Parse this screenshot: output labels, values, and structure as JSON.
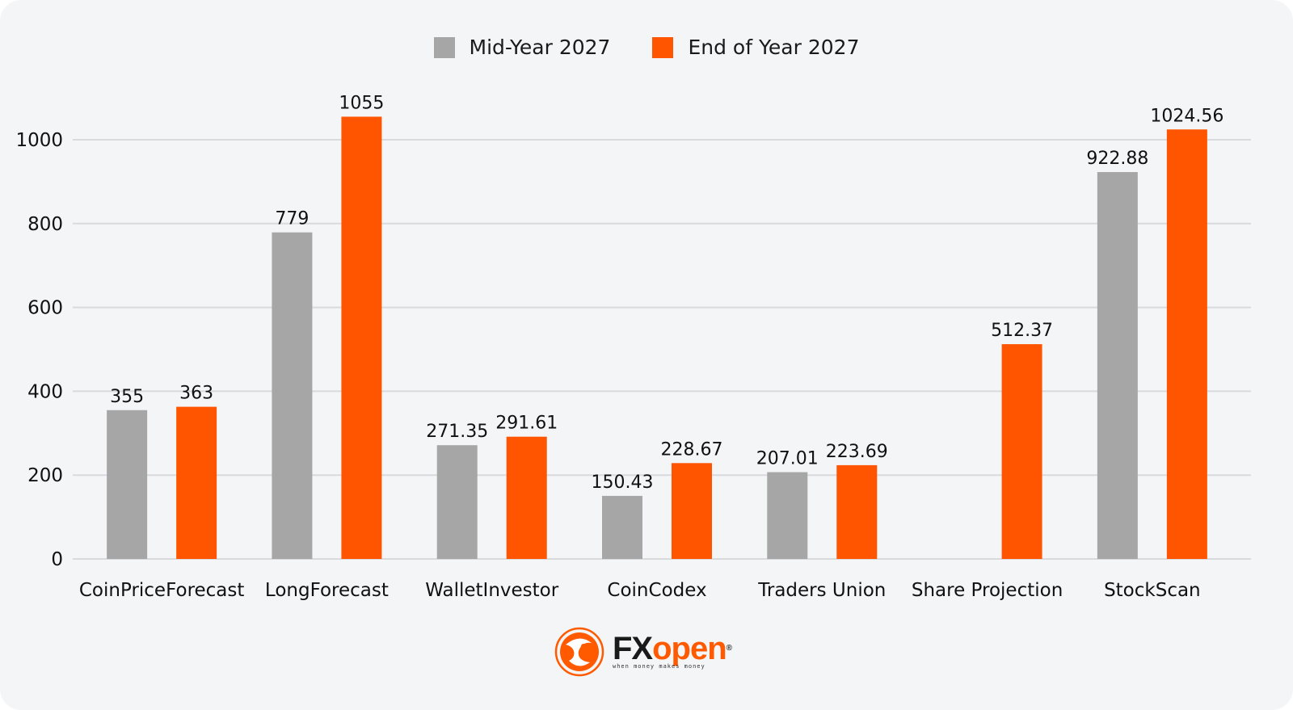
{
  "chart_data": {
    "type": "bar",
    "title": "",
    "xlabel": "",
    "ylabel": "",
    "ylim": [
      0,
      1100
    ],
    "yticks": [
      0,
      200,
      400,
      600,
      800,
      1000
    ],
    "grid": true,
    "legend_position": "top-center",
    "categories": [
      "CoinPriceForecast",
      "LongForecast",
      "WalletInvestor",
      "CoinCodex",
      "Traders Union",
      "Share Projection",
      "StockScan"
    ],
    "series": [
      {
        "name": "Mid-Year 2027",
        "color": "#a6a6a6",
        "values": [
          355,
          779,
          271.35,
          150.43,
          207.01,
          null,
          922.88
        ],
        "labels": [
          "355",
          "779",
          "271.35",
          "150.43",
          "207.01",
          null,
          "922.88"
        ]
      },
      {
        "name": "End of Year 2027",
        "color": "#ff5500",
        "values": [
          363,
          1055,
          291.61,
          228.67,
          223.69,
          512.37,
          1024.56
        ],
        "labels": [
          "363",
          "1055",
          "291.61",
          "228.67",
          "223.69",
          "512.37",
          "1024.56"
        ]
      }
    ]
  },
  "logo": {
    "brand_part1": "FX",
    "brand_part2": "open",
    "registered": "®",
    "tagline": "when money makes money"
  }
}
